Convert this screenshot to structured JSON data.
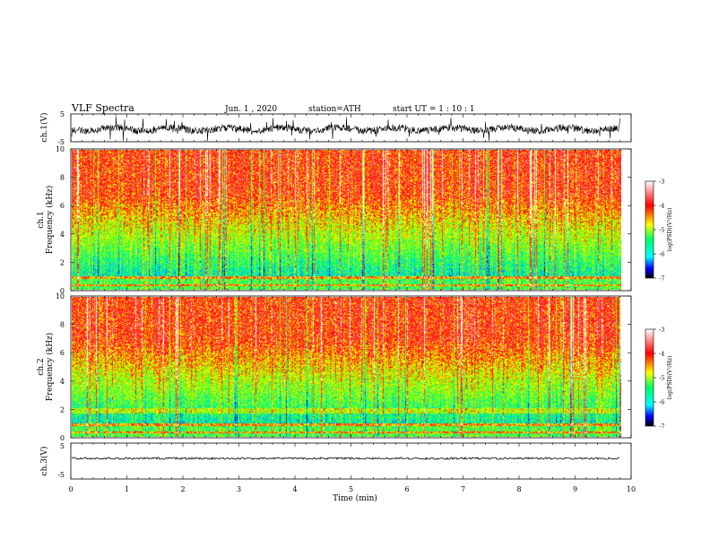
{
  "header": {
    "title": "VLF Spectra",
    "date": "Jun. 1 , 2020",
    "station": "station=ATH",
    "start": "start UT = 1 : 10 : 1"
  },
  "chart_data": [
    {
      "type": "line",
      "ylabel": "ch.1(V)",
      "yticks": [
        "5",
        "-5"
      ],
      "ylim": [
        -5,
        5
      ],
      "xlim": [
        0,
        10
      ],
      "data_extent_min": 9.8
    },
    {
      "type": "heatmap",
      "ylabel_line1": "ch.1",
      "ylabel_line2": "Frequency (kHz)",
      "ylim": [
        0,
        10
      ],
      "yticks": [
        "0",
        "2",
        "4",
        "6",
        "8",
        "10"
      ],
      "xlim": [
        0,
        10
      ],
      "data_extent_min": 9.8,
      "colorbar": {
        "label": "log(PSD)(V²/Hz)",
        "ticks": [
          "-3",
          "-4",
          "-5",
          "-6",
          "-7"
        ],
        "range": [
          -7,
          -3
        ]
      }
    },
    {
      "type": "heatmap",
      "ylabel_line1": "ch.2",
      "ylabel_line2": "Frequency (kHz)",
      "ylim": [
        0,
        10
      ],
      "yticks": [
        "0",
        "2",
        "4",
        "6",
        "8",
        "10"
      ],
      "xlim": [
        0,
        10
      ],
      "data_extent_min": 9.8,
      "colorbar": {
        "label": "log(PSD)(V²/Hz)",
        "ticks": [
          "-3",
          "-4",
          "-5",
          "-6",
          "-7"
        ],
        "range": [
          -7,
          -3
        ]
      }
    },
    {
      "type": "line",
      "ylabel": "ch.3(V)",
      "yticks": [
        "5",
        "-5"
      ],
      "ylim": [
        -5,
        5
      ],
      "xlim": [
        0,
        10
      ],
      "data_extent_min": 9.8,
      "xlabel": "Time (min)",
      "xticks": [
        "0",
        "1",
        "2",
        "3",
        "4",
        "5",
        "6",
        "7",
        "8",
        "9",
        "10"
      ]
    }
  ],
  "colors": {
    "psd_high": "#ff0000",
    "psd_mid": "#ffff00",
    "psd_lowmid": "#00ff66",
    "psd_low": "#0000ff",
    "psd_min": "#000000",
    "psd_max": "#ffffff"
  }
}
